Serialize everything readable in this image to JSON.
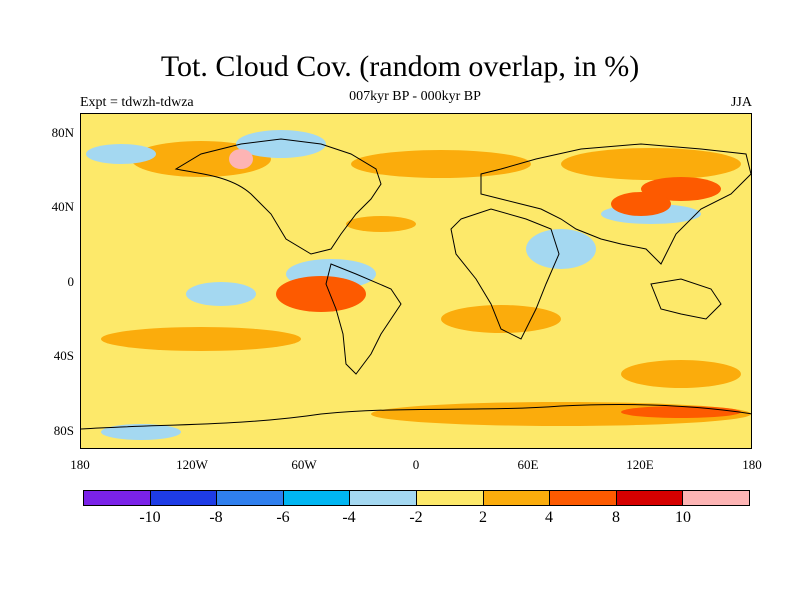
{
  "title": "Tot. Cloud Cov. (random overlap, in %)",
  "subtitle": "007kyr BP - 000kyr BP",
  "experiment": "Expt = tdwzh-tdwza",
  "season": "JJA",
  "map": {
    "lat_labels": [
      "80N",
      "40N",
      "0",
      "40S",
      "80S"
    ],
    "lon_labels": [
      "180",
      "120W",
      "60W",
      "0",
      "60E",
      "120E",
      "180"
    ]
  },
  "colorbar": {
    "colors": [
      "#7a22e8",
      "#1e3ce6",
      "#2f7fee",
      "#00b6f2",
      "#a4d8f1",
      "#fde96a",
      "#fbac0c",
      "#fd5a00",
      "#d60000",
      "#fdb4b4"
    ],
    "labels": [
      "-10",
      "-8",
      "-6",
      "-4",
      "-2",
      "2",
      "4",
      "8",
      "10"
    ]
  }
}
